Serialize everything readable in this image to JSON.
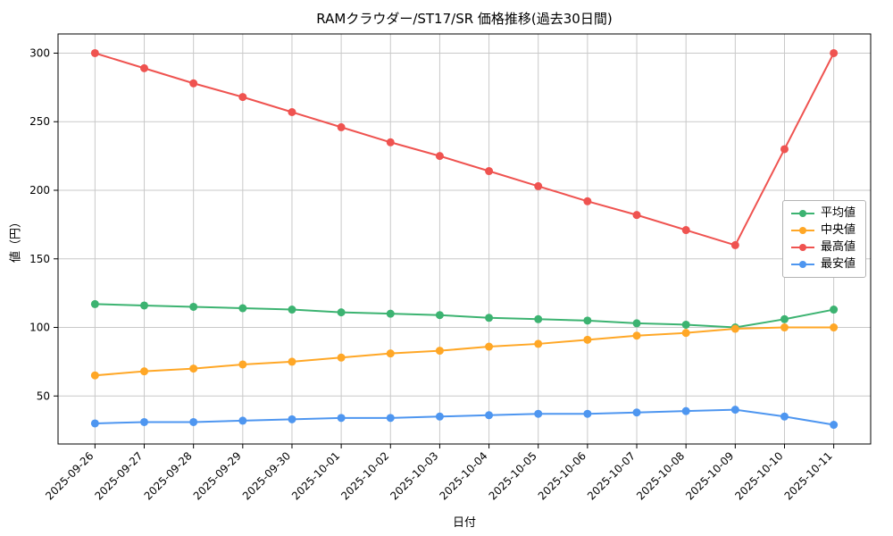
{
  "chart_data": {
    "type": "line",
    "title": "RAMクラウダー/ST17/SR 価格推移(過去30日間)",
    "xlabel": "日付",
    "ylabel": "値（円）",
    "categories": [
      "2025-09-26",
      "2025-09-27",
      "2025-09-28",
      "2025-09-29",
      "2025-09-30",
      "2025-10-01",
      "2025-10-02",
      "2025-10-03",
      "2025-10-04",
      "2025-10-05",
      "2025-10-06",
      "2025-10-07",
      "2025-10-08",
      "2025-10-09",
      "2025-10-10",
      "2025-10-11"
    ],
    "series": [
      {
        "name": "平均値",
        "color": "#3cb371",
        "values": [
          117,
          116,
          115,
          114,
          113,
          111,
          110,
          109,
          107,
          106,
          105,
          103,
          102,
          100,
          106,
          113
        ]
      },
      {
        "name": "中央値",
        "color": "#ffa726",
        "values": [
          65,
          68,
          70,
          73,
          75,
          78,
          81,
          83,
          86,
          88,
          91,
          94,
          96,
          99,
          100,
          100
        ]
      },
      {
        "name": "最高値",
        "color": "#ef5350",
        "values": [
          300,
          289,
          278,
          268,
          257,
          246,
          235,
          225,
          214,
          203,
          192,
          182,
          171,
          160,
          230,
          300
        ]
      },
      {
        "name": "最安値",
        "color": "#4e96f0",
        "values": [
          30,
          31,
          31,
          32,
          33,
          34,
          34,
          35,
          36,
          37,
          37,
          38,
          39,
          40,
          35,
          29
        ]
      }
    ],
    "ylim": [
      15,
      314
    ],
    "yticks": [
      50,
      100,
      150,
      200,
      250,
      300
    ],
    "grid": true,
    "legend_position": "center right"
  }
}
